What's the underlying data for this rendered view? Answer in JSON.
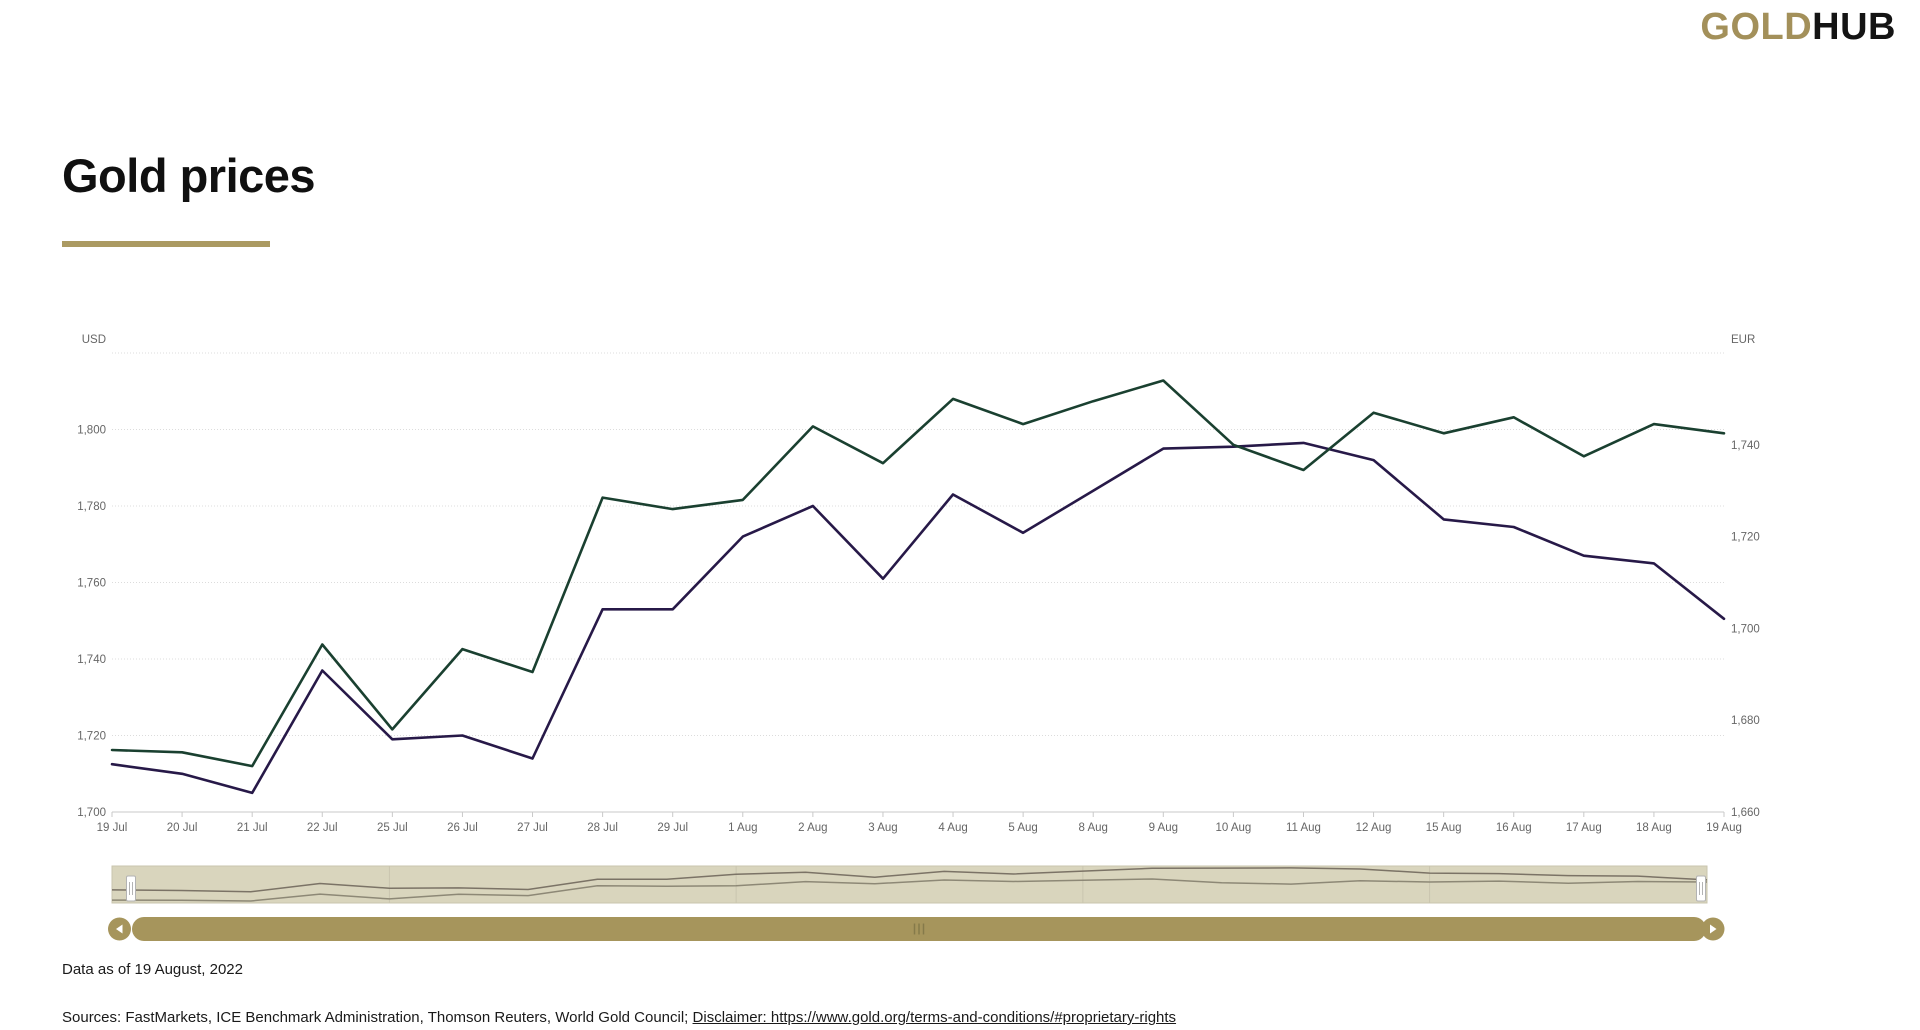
{
  "header": {
    "logo_gold": "GOLD",
    "logo_hub": "HUB"
  },
  "title": "Gold prices",
  "chart_data": {
    "type": "line",
    "title": "Gold prices",
    "categories": [
      "19 Jul",
      "20 Jul",
      "21 Jul",
      "22 Jul",
      "25 Jul",
      "26 Jul",
      "27 Jul",
      "28 Jul",
      "29 Jul",
      "1 Aug",
      "2 Aug",
      "3 Aug",
      "4 Aug",
      "5 Aug",
      "8 Aug",
      "9 Aug",
      "10 Aug",
      "11 Aug",
      "12 Aug",
      "15 Aug",
      "16 Aug",
      "17 Aug",
      "18 Aug",
      "19 Aug"
    ],
    "series": [
      {
        "name": "USD",
        "axis": "left",
        "color": "#271948",
        "values": [
          1712.5,
          1710,
          1705,
          1737,
          1719,
          1720,
          1714,
          1753,
          1753,
          1772,
          1780,
          1761,
          1783,
          1773,
          1784,
          1795,
          1795.5,
          1796.5,
          1792,
          1776.5,
          1774.5,
          1767,
          1765,
          1750.5
        ]
      },
      {
        "name": "EUR",
        "axis": "right",
        "color": "#1a4030",
        "values": [
          1673.5,
          1673,
          1670,
          1696.5,
          1678,
          1695.5,
          1690.5,
          1728.5,
          1726,
          1728,
          1744,
          1736,
          1750,
          1744.5,
          1749.5,
          1754,
          1740,
          1734.5,
          1747,
          1742.5,
          1746,
          1737.5,
          1744.5,
          1742.5
        ]
      }
    ],
    "left_axis": {
      "title": "USD",
      "ticks": [
        1700,
        1720,
        1740,
        1760,
        1780,
        1800
      ],
      "range": [
        1700,
        1820
      ]
    },
    "right_axis": {
      "title": "EUR",
      "ticks": [
        1660,
        1680,
        1700,
        1720,
        1740
      ],
      "range": [
        1660,
        1760
      ]
    },
    "grid": {
      "horizontal": "dotted"
    },
    "legend_position": "none"
  },
  "navigator": {
    "accent": "#a6955c",
    "grip_color": "#857a4a",
    "band_fill": "#d9d5bd",
    "band_border": "#c9c5ae",
    "nav_line_usd": "#7b7366",
    "nav_line_eur": "#8d8876",
    "nav_range": [
      1670,
      1796
    ]
  },
  "colors": {
    "accent_gold": "#ab9a62",
    "grid_dotted": "#dcdcdc",
    "axis_line": "#c9c9c9",
    "axis_text": "#666666"
  },
  "footer": {
    "data_as_of": "Data as of 19 August, 2022",
    "sources_prefix": "Sources: FastMarkets, ICE Benchmark Administration, Thomson Reuters, World Gold Council; ",
    "disclaimer_link": "Disclaimer: https://www.gold.org/terms-and-conditions/#proprietary-rights"
  }
}
